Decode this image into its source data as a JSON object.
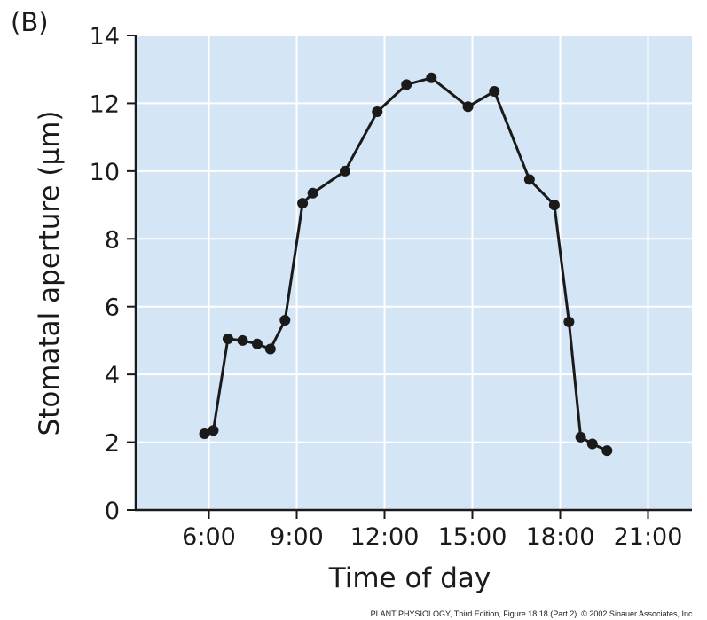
{
  "panel_label": "(B)",
  "credit": {
    "book": "PLANT PHYSIOLOGY",
    "edition": ", Third Edition, Figure 18.18 (Part 2)",
    "copyright": "© 2002 Sinauer Associates, Inc."
  },
  "colors": {
    "plot_background": "#d4e5f5",
    "grid": "#ffffff",
    "line": "#1a1a1a",
    "marker": "#1a1a1a",
    "axis": "#1a1a1a"
  },
  "chart_data": {
    "type": "line",
    "title": "",
    "xlabel": "Time of day",
    "ylabel": "Stomatal aperture (μm)",
    "xlim": [
      3.5,
      22.5
    ],
    "ylim": [
      0,
      14
    ],
    "x_ticks": [
      6,
      9,
      12,
      15,
      18,
      21
    ],
    "x_tick_labels": [
      "6:00",
      "9:00",
      "12:00",
      "15:00",
      "18:00",
      "21:00"
    ],
    "y_ticks": [
      0,
      2,
      4,
      6,
      8,
      10,
      12,
      14
    ],
    "y_tick_labels": [
      "0",
      "2",
      "4",
      "6",
      "8",
      "10",
      "12",
      "14"
    ],
    "grid": true,
    "series": [
      {
        "name": "Stomatal aperture",
        "x": [
          5.85,
          6.15,
          6.65,
          7.15,
          7.65,
          8.1,
          8.6,
          9.2,
          9.55,
          10.65,
          11.75,
          12.75,
          13.6,
          14.85,
          15.75,
          16.95,
          17.8,
          18.3,
          18.7,
          19.1,
          19.6
        ],
        "values": [
          2.25,
          2.35,
          5.05,
          5.0,
          4.9,
          4.75,
          5.6,
          9.05,
          9.35,
          10.0,
          11.75,
          12.55,
          12.75,
          11.9,
          12.35,
          9.75,
          9.0,
          5.55,
          2.15,
          1.95,
          1.75
        ]
      }
    ]
  }
}
